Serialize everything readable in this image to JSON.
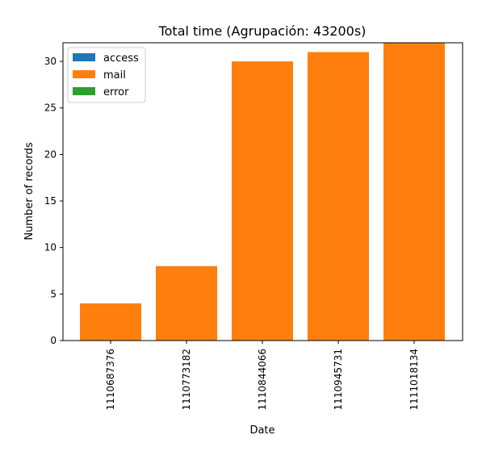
{
  "chart_data": {
    "type": "bar",
    "stacked": true,
    "title": "Total time (Agrupación: 43200s)",
    "xlabel": "Date",
    "ylabel": "Number of records",
    "categories": [
      "1110687376",
      "1110773182",
      "1110844066",
      "1110945731",
      "1111018134"
    ],
    "series": [
      {
        "name": "access",
        "color": "#1f77b4",
        "values": [
          0,
          0,
          0,
          0,
          0
        ]
      },
      {
        "name": "mail",
        "color": "#ff7f0e",
        "values": [
          4,
          8,
          30,
          31,
          32
        ]
      },
      {
        "name": "error",
        "color": "#2ca02c",
        "values": [
          0,
          0,
          0,
          0,
          0
        ]
      }
    ],
    "ylim": [
      0,
      32
    ],
    "yticks": [
      0,
      5,
      10,
      15,
      20,
      25,
      30
    ],
    "grid": false,
    "legend_position": "top-left"
  }
}
